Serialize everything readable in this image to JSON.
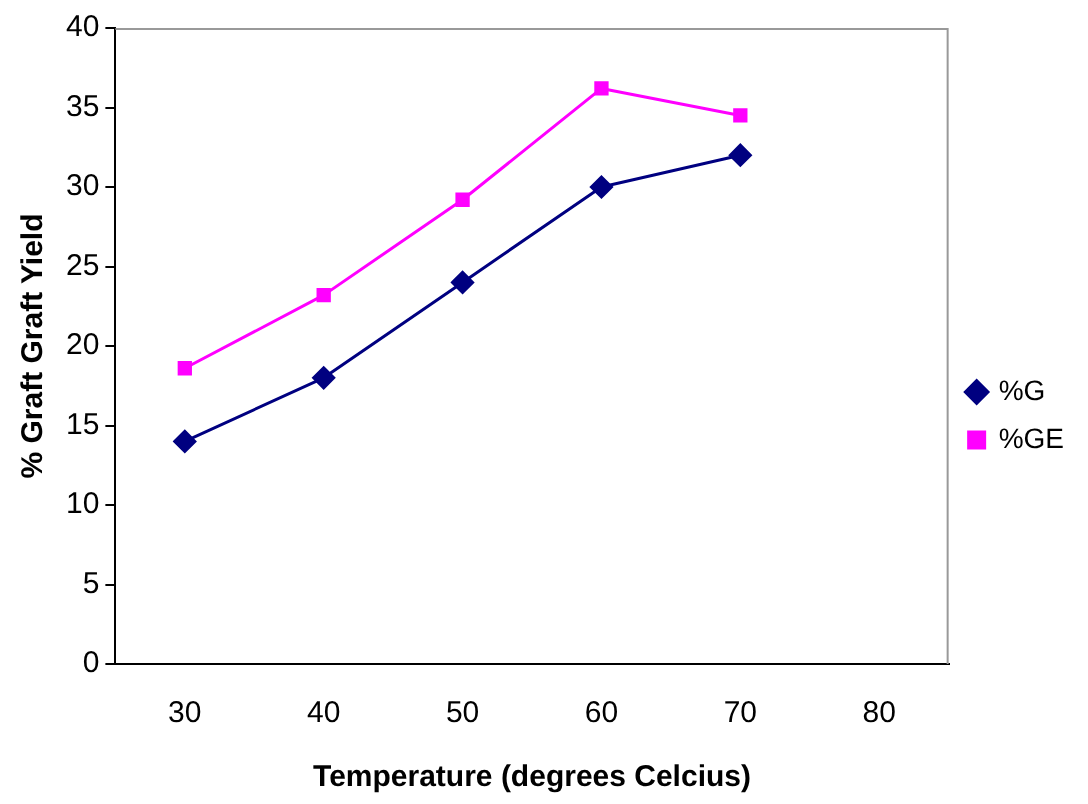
{
  "chart_data": {
    "type": "line",
    "xlabel": "Temperature (degrees Celcius)",
    "ylabel": "% Graft Graft Yield",
    "categories": [
      "30",
      "40",
      "50",
      "60",
      "70",
      "80"
    ],
    "series": [
      {
        "name": "%G",
        "color": "#000080",
        "marker": "diamond",
        "values": [
          14,
          18,
          24,
          30,
          32,
          null
        ]
      },
      {
        "name": "%GE",
        "color": "#ff00ff",
        "marker": "square",
        "values": [
          18.6,
          23.2,
          29.2,
          36.2,
          34.5,
          null
        ]
      }
    ],
    "ylim": [
      0,
      40
    ],
    "yticks": [
      0,
      5,
      10,
      15,
      20,
      25,
      30,
      35,
      40
    ],
    "grid": false,
    "legend": "right",
    "line_style": "solid"
  }
}
